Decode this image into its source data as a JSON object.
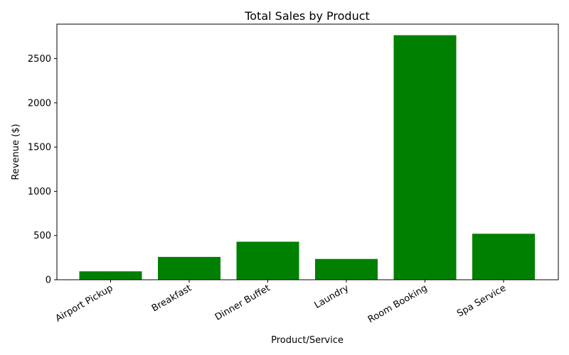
{
  "chart_data": {
    "type": "bar",
    "title": "Total Sales by Product",
    "xlabel": "Product/Service",
    "ylabel": "Revenue ($)",
    "categories": [
      "Airport Pickup",
      "Breakfast",
      "Dinner Buffet",
      "Laundry",
      "Room Booking",
      "Spa Service"
    ],
    "values": [
      95,
      258,
      430,
      235,
      2765,
      520
    ],
    "ylim": [
      0,
      2890
    ],
    "yticks": [
      0,
      500,
      1000,
      1500,
      2000,
      2500
    ],
    "bar_color": "#008000",
    "grid": false,
    "legend": "none",
    "x_tick_rotation": "30 degrees"
  }
}
